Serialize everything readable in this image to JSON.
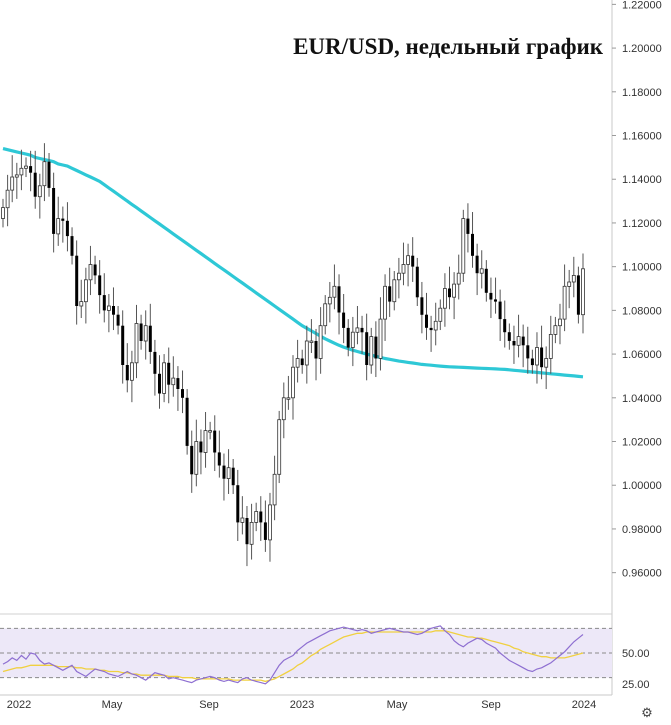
{
  "chart_data": [
    {
      "type": "candlestick",
      "title": "EUR/USD, недельный график",
      "ylim": [
        0.942,
        1.222
      ],
      "y_ticks": [
        "1.22000",
        "1.20000",
        "1.18000",
        "1.16000",
        "1.14000",
        "1.12000",
        "1.10000",
        "1.08000",
        "1.06000",
        "1.04000",
        "1.02000",
        "1.00000",
        "0.98000",
        "0.96000"
      ],
      "x_ticks": [
        "2022",
        "May",
        "Sep",
        "2023",
        "May",
        "Sep",
        "2024"
      ],
      "grid": false,
      "colors": {
        "up": "#ffffff",
        "down": "#000000",
        "wick": "#555555",
        "ma": "#2ec8d6"
      },
      "series": [
        {
          "type": "candlestick",
          "close": [
            1.127,
            1.135,
            1.141,
            1.142,
            1.145,
            1.146,
            1.143,
            1.132,
            1.137,
            1.148,
            1.136,
            1.115,
            1.122,
            1.121,
            1.114,
            1.105,
            1.082,
            1.084,
            1.094,
            1.101,
            1.096,
            1.087,
            1.08,
            1.082,
            1.078,
            1.073,
            1.055,
            1.048,
            1.056,
            1.074,
            1.066,
            1.073,
            1.061,
            1.051,
            1.042,
            1.056,
            1.046,
            1.049,
            1.044,
            1.04,
            1.018,
            1.005,
            1.02,
            1.015,
            1.025,
            1.025,
            1.015,
            1.009,
            1.003,
            1.008,
            1.0,
            0.983,
            0.985,
            0.973,
            0.983,
            0.988,
            0.983,
            0.975,
            0.991,
            1.005,
            1.03,
            1.04,
            1.04,
            1.054,
            1.058,
            1.055,
            1.066,
            1.066,
            1.058,
            1.073,
            1.083,
            1.086,
            1.091,
            1.079,
            1.072,
            1.063,
            1.07,
            1.072,
            1.07,
            1.055,
            1.068,
            1.058,
            1.076,
            1.091,
            1.084,
            1.094,
            1.097,
            1.101,
            1.105,
            1.1,
            1.086,
            1.078,
            1.072,
            1.071,
            1.075,
            1.081,
            1.09,
            1.086,
            1.092,
            1.097,
            1.122,
            1.115,
            1.105,
            1.097,
            1.099,
            1.088,
            1.085,
            1.084,
            1.076,
            1.07,
            1.066,
            1.064,
            1.068,
            1.064,
            1.058,
            1.055,
            1.063,
            1.054,
            1.058,
            1.069,
            1.073,
            1.076,
            1.091,
            1.093,
            1.096,
            1.078,
            1.099
          ],
          "ma": [
            1.154,
            1.1535,
            1.153,
            1.1525,
            1.152,
            1.1515,
            1.151,
            1.15,
            1.1495,
            1.149,
            1.1485,
            1.148,
            1.147,
            1.1465,
            1.146,
            1.145,
            1.144,
            1.143,
            1.142,
            1.141,
            1.14,
            1.139,
            1.1375,
            1.136,
            1.1345,
            1.133,
            1.1315,
            1.13,
            1.1285,
            1.127,
            1.1255,
            1.124,
            1.1225,
            1.121,
            1.1195,
            1.118,
            1.1165,
            1.115,
            1.1135,
            1.112,
            1.1105,
            1.109,
            1.1075,
            1.106,
            1.1045,
            1.103,
            1.1015,
            1.1,
            1.0985,
            1.097,
            1.0955,
            1.094,
            1.0925,
            1.091,
            1.0895,
            1.088,
            1.0865,
            1.085,
            1.0835,
            1.082,
            1.0805,
            1.079,
            1.0775,
            1.076,
            1.0745,
            1.073,
            1.0718,
            1.0706,
            1.0694,
            1.0682,
            1.067,
            1.066,
            1.065,
            1.064,
            1.0632,
            1.0625,
            1.0618,
            1.0612,
            1.0606,
            1.06,
            1.0595,
            1.059,
            1.0585,
            1.058,
            1.0576,
            1.0572,
            1.0568,
            1.0565,
            1.0562,
            1.0559,
            1.0556,
            1.0553,
            1.0551,
            1.0549,
            1.0547,
            1.0545,
            1.0543,
            1.0542,
            1.0541,
            1.054,
            1.0539,
            1.0538,
            1.0537,
            1.0536,
            1.0535,
            1.0534,
            1.0533,
            1.0532,
            1.0531,
            1.053,
            1.0528,
            1.0526,
            1.0524,
            1.0522,
            1.052,
            1.0518,
            1.0516,
            1.0514,
            1.0512,
            1.051,
            1.0508,
            1.0506,
            1.0504,
            1.0502,
            1.05,
            1.0498,
            1.0496
          ]
        }
      ]
    },
    {
      "type": "line",
      "ylim": [
        20,
        80
      ],
      "y_ticks": [
        "50.00",
        "25.00"
      ],
      "band": [
        30,
        70
      ],
      "colors": {
        "rsi": "#8e6fd1",
        "signal": "#f0d040",
        "band": "#ede8f8",
        "level": "#8a8a8a"
      },
      "series": [
        {
          "name": "",
          "values": [
            41,
            43,
            46,
            44,
            48,
            45,
            50,
            49,
            44,
            41,
            42,
            40,
            38,
            36,
            38,
            40,
            35,
            33,
            31,
            34,
            37,
            36,
            35,
            33,
            32,
            31,
            33,
            35,
            33,
            32,
            30,
            28,
            31,
            34,
            33,
            32,
            29,
            30,
            29,
            28,
            27,
            26,
            28,
            29,
            30,
            31,
            30,
            28,
            27,
            28,
            27,
            26,
            29,
            30,
            28,
            27,
            26,
            25,
            28,
            34,
            40,
            44,
            46,
            48,
            52,
            55,
            58,
            60,
            62,
            64,
            66,
            68,
            69,
            70,
            71,
            70,
            69,
            68,
            69,
            68,
            66,
            67,
            68,
            69,
            70,
            69,
            68,
            67,
            67,
            66,
            65,
            66,
            68,
            70,
            71,
            72,
            68,
            65,
            60,
            57,
            55,
            58,
            60,
            62,
            61,
            58,
            56,
            54,
            50,
            47,
            44,
            42,
            40,
            38,
            36,
            35,
            37,
            38,
            40,
            42,
            45,
            48,
            51,
            55,
            59,
            62,
            65
          ]
        },
        {
          "name": "",
          "values": [
            35,
            36,
            37,
            38,
            38,
            39,
            40,
            40,
            40,
            40,
            40,
            40,
            39,
            39,
            39,
            39,
            38,
            38,
            37,
            37,
            37,
            36,
            36,
            35,
            35,
            35,
            34,
            34,
            33,
            33,
            32,
            32,
            32,
            32,
            32,
            32,
            31,
            31,
            31,
            30,
            30,
            30,
            29,
            29,
            29,
            29,
            29,
            29,
            29,
            29,
            28,
            28,
            28,
            28,
            28,
            28,
            28,
            27,
            28,
            29,
            31,
            33,
            35,
            37,
            40,
            42,
            45,
            48,
            50,
            53,
            55,
            57,
            59,
            61,
            63,
            64,
            65,
            66,
            66,
            67,
            67,
            67,
            67,
            67,
            67,
            67,
            67,
            67,
            67,
            67,
            67,
            67,
            67,
            67,
            68,
            68,
            68,
            67,
            66,
            65,
            64,
            63,
            63,
            62,
            62,
            61,
            60,
            59,
            58,
            57,
            56,
            54,
            53,
            51,
            50,
            49,
            48,
            47,
            47,
            46,
            46,
            46,
            46,
            47,
            48,
            49,
            50
          ]
        }
      ]
    }
  ]
}
